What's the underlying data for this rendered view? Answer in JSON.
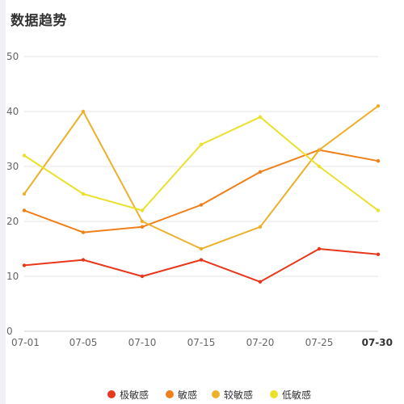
{
  "title": "数据趋势",
  "chart_data": {
    "type": "line",
    "title": "数据趋势",
    "xlabel": "",
    "ylabel": "",
    "categories": [
      "07-01",
      "07-05",
      "07-10",
      "07-15",
      "07-20",
      "07-25",
      "07-30"
    ],
    "ylim": [
      0,
      50
    ],
    "yticks": [
      0,
      10,
      20,
      30,
      40,
      50
    ],
    "grid": true,
    "legend_position": "bottom",
    "series": [
      {
        "name": "极敏感",
        "color": "#e8381c",
        "values": [
          12,
          13,
          10,
          13,
          9,
          15,
          14
        ]
      },
      {
        "name": "敏感",
        "color": "#f08019",
        "values": [
          22,
          18,
          19,
          23,
          29,
          33,
          31
        ]
      },
      {
        "name": "较敏感",
        "color": "#ecb12b",
        "values": [
          25,
          40,
          20,
          15,
          19,
          33,
          41
        ]
      },
      {
        "name": "低敏感",
        "color": "#eae12c",
        "values": [
          32,
          25,
          22,
          34,
          39,
          30,
          22
        ]
      }
    ]
  }
}
